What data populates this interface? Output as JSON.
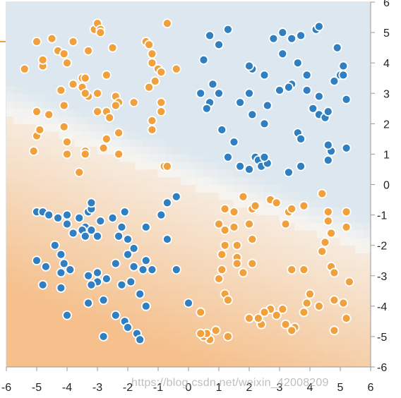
{
  "chart_data": {
    "type": "scatter",
    "title": "",
    "xlabel": "",
    "ylabel": "",
    "xlim": [
      -6,
      6
    ],
    "ylim": [
      -6,
      6
    ],
    "x_ticks": [
      "-6",
      "-5",
      "-4",
      "-3",
      "-2",
      "-1",
      "0",
      "1",
      "2",
      "3",
      "4",
      "5",
      "6"
    ],
    "y_ticks": [
      "6",
      "5",
      "4",
      "3",
      "2",
      "1",
      "0",
      "-1",
      "-2",
      "-3",
      "-4",
      "-5",
      "-6"
    ],
    "grid": false,
    "background": "decision surface: orange (lower-left) to light blue (upper-right), boundary roughly y = -0.38x + 0.2",
    "colors": {
      "blue_class": "#2f7fc1",
      "orange_class": "#f0a03c",
      "orange_region": "#f5c08c",
      "blue_region": "#dce7ef"
    },
    "series": [
      {
        "color": "blue",
        "points": [
          [
            0.7,
            4.9
          ],
          [
            1.3,
            5.1
          ],
          [
            1.0,
            4.6
          ],
          [
            0.5,
            4.1
          ],
          [
            2.1,
            3.8
          ],
          [
            2.0,
            3.9
          ],
          [
            2.5,
            3.6
          ],
          [
            2.8,
            4.8
          ],
          [
            3.1,
            5.0
          ],
          [
            3.4,
            4.8
          ],
          [
            3.7,
            4.9
          ],
          [
            4.2,
            5.1
          ],
          [
            4.3,
            5.2
          ],
          [
            3.1,
            4.3
          ],
          [
            3.6,
            4.0
          ],
          [
            4.9,
            4.5
          ],
          [
            0.4,
            3.0
          ],
          [
            0.8,
            3.3
          ],
          [
            0.7,
            2.7
          ],
          [
            0.6,
            2.5
          ],
          [
            1.0,
            3.0
          ],
          [
            1.7,
            2.7
          ],
          [
            2.0,
            3.0
          ],
          [
            2.1,
            2.3
          ],
          [
            2.6,
            2.6
          ],
          [
            3.0,
            3.1
          ],
          [
            3.4,
            3.3
          ],
          [
            3.3,
            3.2
          ],
          [
            3.9,
            3.1
          ],
          [
            4.1,
            2.5
          ],
          [
            4.3,
            2.3
          ],
          [
            4.5,
            2.2
          ],
          [
            4.6,
            2.4
          ],
          [
            4.3,
            2.9
          ],
          [
            4.8,
            3.4
          ],
          [
            5.0,
            3.6
          ],
          [
            5.1,
            3.6
          ],
          [
            5.1,
            3.9
          ],
          [
            5.2,
            2.8
          ],
          [
            3.9,
            3.6
          ],
          [
            2.5,
            2.0
          ],
          [
            1.1,
            1.8
          ],
          [
            3.6,
            1.7
          ],
          [
            3.7,
            1.5
          ],
          [
            1.5,
            1.4
          ],
          [
            1.3,
            0.9
          ],
          [
            1.7,
            0.6
          ],
          [
            2.0,
            0.5
          ],
          [
            2.2,
            0.9
          ],
          [
            2.3,
            0.8
          ],
          [
            2.4,
            0.6
          ],
          [
            2.6,
            0.7
          ],
          [
            2.5,
            0.9
          ],
          [
            3.3,
            0.4
          ],
          [
            3.7,
            0.6
          ],
          [
            4.6,
            0.8
          ],
          [
            4.7,
            1.1
          ],
          [
            4.6,
            1.3
          ],
          [
            5.2,
            1.2
          ],
          [
            0.0,
            -3.9
          ],
          [
            -5.0,
            -0.9
          ],
          [
            -4.8,
            -0.9
          ],
          [
            -4.6,
            -1.0
          ],
          [
            -4.3,
            -1.1
          ],
          [
            -4.0,
            -1.0
          ],
          [
            -4.0,
            -1.3
          ],
          [
            -3.6,
            -1.1
          ],
          [
            -3.4,
            -1.4
          ],
          [
            -3.3,
            -0.9
          ],
          [
            -3.2,
            -0.8
          ],
          [
            -3.2,
            -0.6
          ],
          [
            -2.9,
            -1.2
          ],
          [
            -2.5,
            -1.1
          ],
          [
            -2.1,
            -0.9
          ],
          [
            -2.2,
            -1.4
          ],
          [
            -2.3,
            -1.7
          ],
          [
            -2.0,
            -1.8
          ],
          [
            -1.8,
            -2.1
          ],
          [
            -1.4,
            -1.4
          ],
          [
            -0.9,
            -1.0
          ],
          [
            -0.7,
            -0.6
          ],
          [
            -0.4,
            -0.4
          ],
          [
            -0.7,
            -1.8
          ],
          [
            -4.4,
            -2.0
          ],
          [
            -4.2,
            -2.3
          ],
          [
            -3.8,
            -1.6
          ],
          [
            -3.5,
            -1.5
          ],
          [
            -3.0,
            -1.7
          ],
          [
            -3.4,
            -1.7
          ],
          [
            -3.2,
            -1.5
          ],
          [
            -5.0,
            -2.5
          ],
          [
            -4.7,
            -2.7
          ],
          [
            -4.1,
            -2.6
          ],
          [
            -3.9,
            -2.8
          ],
          [
            -4.2,
            -2.9
          ],
          [
            -3.3,
            -3.0
          ],
          [
            -3.0,
            -2.9
          ],
          [
            -2.7,
            -3.1
          ],
          [
            -3.0,
            -3.2
          ],
          [
            -2.4,
            -2.6
          ],
          [
            -2.0,
            -2.3
          ],
          [
            -1.8,
            -2.7
          ],
          [
            -1.4,
            -2.5
          ],
          [
            -1.5,
            -2.8
          ],
          [
            -1.2,
            -2.8
          ],
          [
            -0.4,
            -2.8
          ],
          [
            -2.2,
            -3.3
          ],
          [
            -1.9,
            -3.2
          ],
          [
            -1.6,
            -3.6
          ],
          [
            -1.4,
            -4.0
          ],
          [
            -2.1,
            -4.5
          ],
          [
            -2.4,
            -4.3
          ],
          [
            -1.7,
            -4.9
          ],
          [
            -1.6,
            -5.1
          ],
          [
            -2.0,
            -4.7
          ],
          [
            -2.8,
            -5.0
          ],
          [
            -4.8,
            -3.3
          ],
          [
            -4.2,
            -3.4
          ],
          [
            -4.0,
            -4.3
          ],
          [
            -3.3,
            -3.9
          ],
          [
            -2.8,
            -3.8
          ],
          [
            -3.2,
            -3.3
          ]
        ]
      },
      {
        "color": "orange",
        "points": [
          [
            -5.4,
            3.8
          ],
          [
            -5.0,
            4.7
          ],
          [
            -4.8,
            3.9
          ],
          [
            -4.8,
            4.1
          ],
          [
            -4.5,
            4.8
          ],
          [
            -4.3,
            4.4
          ],
          [
            -4.0,
            4.0
          ],
          [
            -4.1,
            4.3
          ],
          [
            -3.8,
            4.7
          ],
          [
            -3.5,
            3.2
          ],
          [
            -3.5,
            3.5
          ],
          [
            -3.4,
            3.5
          ],
          [
            -3.3,
            4.4
          ],
          [
            -3.1,
            5.1
          ],
          [
            -3.0,
            5.3
          ],
          [
            -2.9,
            5.1
          ],
          [
            -2.9,
            5.0
          ],
          [
            -2.7,
            3.6
          ],
          [
            -2.5,
            4.5
          ],
          [
            -1.4,
            4.7
          ],
          [
            -1.3,
            4.6
          ],
          [
            -1.2,
            4.3
          ],
          [
            -1.2,
            4.0
          ],
          [
            -1.0,
            3.8
          ],
          [
            -0.9,
            3.7
          ],
          [
            -0.7,
            5.3
          ],
          [
            -0.4,
            3.8
          ],
          [
            -1.3,
            3.2
          ],
          [
            -1.1,
            3.4
          ],
          [
            -0.9,
            2.7
          ],
          [
            -1.8,
            2.7
          ],
          [
            -2.4,
            2.9
          ],
          [
            -2.3,
            2.7
          ],
          [
            -2.4,
            2.6
          ],
          [
            -2.7,
            2.4
          ],
          [
            -2.6,
            2.2
          ],
          [
            -3.0,
            2.4
          ],
          [
            -3.3,
            2.9
          ],
          [
            -3.4,
            3.0
          ],
          [
            -3.0,
            3.0
          ],
          [
            -3.8,
            3.3
          ],
          [
            -4.2,
            3.1
          ],
          [
            -4.1,
            2.6
          ],
          [
            -4.6,
            2.3
          ],
          [
            -5.0,
            2.4
          ],
          [
            -5.1,
            1.1
          ],
          [
            -5.0,
            1.6
          ],
          [
            -4.9,
            1.8
          ],
          [
            -4.1,
            1.9
          ],
          [
            -4.0,
            1.4
          ],
          [
            -4.0,
            1.0
          ],
          [
            -3.4,
            1.1
          ],
          [
            -3.4,
            1.0
          ],
          [
            -2.8,
            1.2
          ],
          [
            -2.7,
            1.5
          ],
          [
            -2.3,
            1.7
          ],
          [
            -2.3,
            1.0
          ],
          [
            -3.6,
            0.4
          ],
          [
            -1.2,
            2.1
          ],
          [
            -1.2,
            1.8
          ],
          [
            -0.9,
            2.4
          ],
          [
            -0.8,
            0.6
          ],
          [
            -0.7,
            0.6
          ],
          [
            1.2,
            -0.8
          ],
          [
            1.5,
            -0.9
          ],
          [
            1.0,
            -1.3
          ],
          [
            1.2,
            -1.5
          ],
          [
            1.5,
            -1.4
          ],
          [
            1.8,
            -0.4
          ],
          [
            2.1,
            -0.8
          ],
          [
            2.2,
            -0.7
          ],
          [
            2.7,
            -0.5
          ],
          [
            2.9,
            -0.6
          ],
          [
            3.3,
            -0.9
          ],
          [
            3.4,
            -0.8
          ],
          [
            3.8,
            -0.7
          ],
          [
            4.4,
            -0.3
          ],
          [
            4.6,
            -0.9
          ],
          [
            5.2,
            -0.9
          ],
          [
            5.2,
            -1.4
          ],
          [
            4.6,
            -1.2
          ],
          [
            4.7,
            -1.6
          ],
          [
            4.5,
            -1.9
          ],
          [
            4.4,
            -2.2
          ],
          [
            3.2,
            -1.3
          ],
          [
            2.0,
            -1.3
          ],
          [
            2.1,
            -1.8
          ],
          [
            1.6,
            -2.0
          ],
          [
            1.6,
            -2.4
          ],
          [
            1.6,
            -2.6
          ],
          [
            1.2,
            -2.0
          ],
          [
            1.1,
            -2.3
          ],
          [
            1.1,
            -2.8
          ],
          [
            1.0,
            -3.1
          ],
          [
            1.8,
            -2.9
          ],
          [
            2.1,
            -2.6
          ],
          [
            3.4,
            -2.8
          ],
          [
            3.8,
            -2.8
          ],
          [
            4.7,
            -2.7
          ],
          [
            4.8,
            -2.9
          ],
          [
            5.3,
            -3.2
          ],
          [
            4.0,
            -3.6
          ],
          [
            3.9,
            -3.9
          ],
          [
            3.8,
            -4.2
          ],
          [
            4.3,
            -4.0
          ],
          [
            4.8,
            -3.8
          ],
          [
            5.1,
            -3.9
          ],
          [
            3.1,
            -4.1
          ],
          [
            2.9,
            -4.3
          ],
          [
            2.7,
            -4.1
          ],
          [
            2.5,
            -4.2
          ],
          [
            2.4,
            -4.6
          ],
          [
            2.3,
            -4.4
          ],
          [
            2.0,
            -4.4
          ],
          [
            3.2,
            -4.6
          ],
          [
            3.5,
            -4.7
          ],
          [
            3.4,
            -4.8
          ],
          [
            4.8,
            -4.8
          ],
          [
            5.2,
            -4.4
          ],
          [
            1.2,
            -3.6
          ],
          [
            1.3,
            -3.8
          ],
          [
            1.3,
            -5.0
          ],
          [
            0.9,
            -4.8
          ],
          [
            0.7,
            -5.1
          ],
          [
            0.5,
            -5.0
          ],
          [
            0.6,
            -4.9
          ],
          [
            0.4,
            -4.9
          ],
          [
            0.4,
            -4.2
          ]
        ]
      }
    ]
  }
}
